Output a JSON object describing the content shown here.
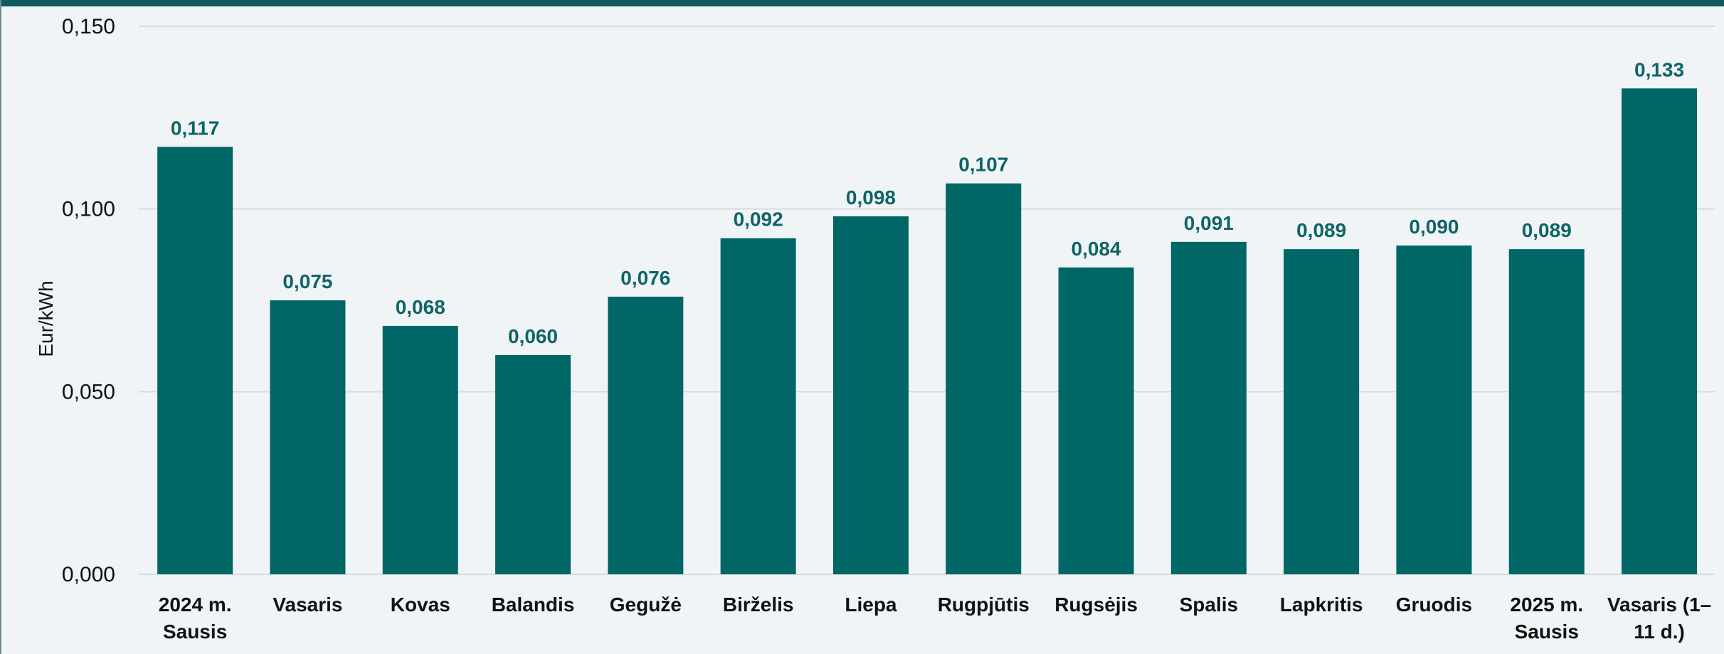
{
  "colors": {
    "bar": "#006666",
    "data_label": "#0f6466",
    "gridline": "#d5dde2",
    "background": "#f0f4f7",
    "top_band": "#0f5a5e"
  },
  "chart_data": {
    "type": "bar",
    "ylabel": "Eur/kWh",
    "ylim": [
      0,
      0.15
    ],
    "yticks": [
      0,
      0.05,
      0.1,
      0.15
    ],
    "ytick_labels": [
      "0,000",
      "0,050",
      "0,100",
      "0,150"
    ],
    "grid": true,
    "categories": [
      [
        "2024 m.",
        "Sausis"
      ],
      [
        "Vasaris"
      ],
      [
        "Kovas"
      ],
      [
        "Balandis"
      ],
      [
        "Gegužė"
      ],
      [
        "Birželis"
      ],
      [
        "Liepa"
      ],
      [
        "Rugpjūtis"
      ],
      [
        "Rugsėjis"
      ],
      [
        "Spalis"
      ],
      [
        "Lapkritis"
      ],
      [
        "Gruodis"
      ],
      [
        "2025 m.",
        "Sausis"
      ],
      [
        "Vasaris (1–",
        "11 d.)"
      ]
    ],
    "values": [
      0.117,
      0.075,
      0.068,
      0.06,
      0.076,
      0.092,
      0.098,
      0.107,
      0.084,
      0.091,
      0.089,
      0.09,
      0.089,
      0.133
    ],
    "value_labels": [
      "0,117",
      "0,075",
      "0,068",
      "0,060",
      "0,076",
      "0,092",
      "0,098",
      "0,107",
      "0,084",
      "0,091",
      "0,089",
      "0,090",
      "0,089",
      "0,133"
    ]
  }
}
